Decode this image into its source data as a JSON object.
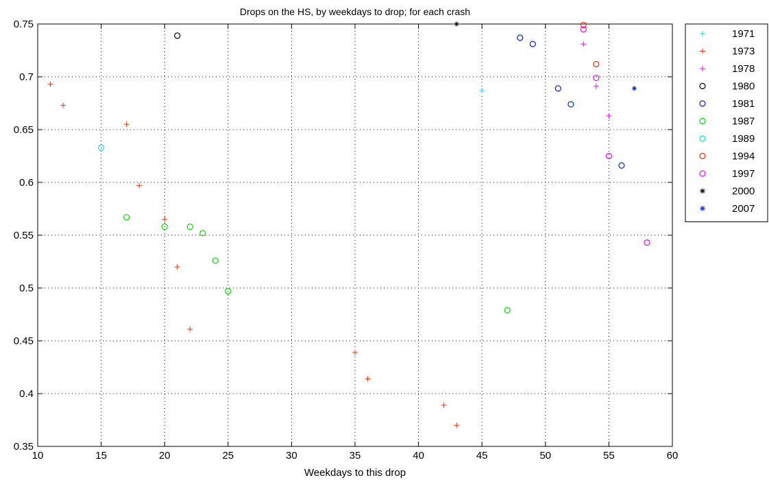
{
  "chart_data": {
    "type": "scatter",
    "title": "Drops on the HS, by weekdays to drop; for each crash",
    "xlabel": "Weekdays to this drop",
    "ylabel": "",
    "xlim": [
      10,
      60
    ],
    "ylim": [
      0.35,
      0.75
    ],
    "x_ticks": [
      10,
      15,
      20,
      25,
      30,
      35,
      40,
      45,
      50,
      55,
      60
    ],
    "y_ticks": [
      0.35,
      0.4,
      0.45,
      0.5,
      0.55,
      0.6,
      0.65,
      0.7,
      0.75
    ],
    "x_tick_labels": [
      "10",
      "15",
      "20",
      "25",
      "30",
      "35",
      "40",
      "45",
      "50",
      "55",
      "60"
    ],
    "y_tick_labels": [
      "0.35",
      "0.4",
      "0.45",
      "0.5",
      "0.55",
      "0.6",
      "0.65",
      "0.7",
      "0.75"
    ],
    "grid": true,
    "legend_position": "outside-top-right",
    "series": [
      {
        "name": "1971",
        "color": "#00e5e5",
        "marker": "plus",
        "points": [
          [
            45,
            0.687
          ]
        ]
      },
      {
        "name": "1973",
        "color": "#ff2a00",
        "marker": "plus",
        "points": [
          [
            11,
            0.693
          ],
          [
            12,
            0.673
          ],
          [
            17,
            0.655
          ],
          [
            18,
            0.597
          ],
          [
            20,
            0.565
          ],
          [
            21,
            0.52
          ],
          [
            22,
            0.461
          ],
          [
            35,
            0.439
          ],
          [
            36,
            0.414
          ],
          [
            42,
            0.389
          ],
          [
            43,
            0.37
          ]
        ]
      },
      {
        "name": "1978",
        "color": "#ff00ff",
        "marker": "plus",
        "points": [
          [
            53,
            0.731
          ],
          [
            54,
            0.691
          ],
          [
            55,
            0.663
          ]
        ]
      },
      {
        "name": "1980",
        "color": "#000000",
        "marker": "circle",
        "points": [
          [
            21,
            0.739
          ]
        ]
      },
      {
        "name": "1981",
        "color": "#0022dd",
        "marker": "circle",
        "points": [
          [
            48,
            0.737
          ],
          [
            49,
            0.731
          ],
          [
            51,
            0.689
          ],
          [
            52,
            0.674
          ],
          [
            56,
            0.616
          ]
        ]
      },
      {
        "name": "1987",
        "color": "#00dd00",
        "marker": "circle",
        "points": [
          [
            17,
            0.567
          ],
          [
            20,
            0.558
          ],
          [
            22,
            0.558
          ],
          [
            23,
            0.552
          ],
          [
            24,
            0.526
          ],
          [
            25,
            0.497
          ],
          [
            47,
            0.479
          ]
        ]
      },
      {
        "name": "1989",
        "color": "#00e5e5",
        "marker": "circle",
        "points": [
          [
            15,
            0.633
          ]
        ]
      },
      {
        "name": "1994",
        "color": "#ff2a00",
        "marker": "circle",
        "points": [
          [
            53,
            0.749
          ],
          [
            54,
            0.712
          ]
        ]
      },
      {
        "name": "1997",
        "color": "#ff00ff",
        "marker": "circle",
        "points": [
          [
            53,
            0.745
          ],
          [
            54,
            0.699
          ],
          [
            55,
            0.625
          ],
          [
            58,
            0.543
          ]
        ]
      },
      {
        "name": "2000",
        "color": "#000000",
        "marker": "star",
        "points": [
          [
            43,
            0.75
          ]
        ]
      },
      {
        "name": "2007",
        "color": "#0022dd",
        "marker": "star",
        "points": [
          [
            57,
            0.689
          ]
        ]
      }
    ]
  }
}
